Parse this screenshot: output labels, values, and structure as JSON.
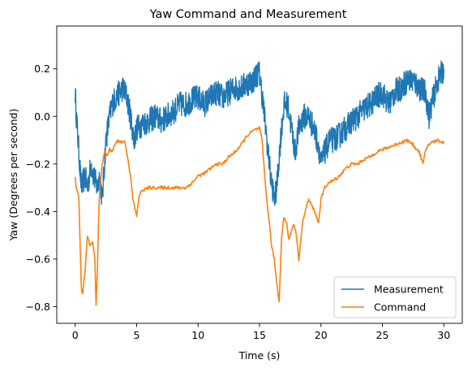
{
  "chart_data": {
    "type": "line",
    "title": "Yaw Command and Measurement",
    "xlabel": "Time (s)",
    "ylabel": "Yaw (Degrees per second)",
    "xlim": [
      -1.5,
      31.5
    ],
    "ylim": [
      -0.87,
      0.38
    ],
    "xticks": [
      0,
      5,
      10,
      15,
      20,
      25,
      30
    ],
    "yticks": [
      -0.8,
      -0.6,
      -0.4,
      -0.2,
      0.0,
      0.2
    ],
    "ytick_labels": [
      "−0.8",
      "−0.6",
      "−0.4",
      "−0.2",
      "0.0",
      "0.2"
    ],
    "grid": false,
    "legend_position": "lower-right",
    "series": [
      {
        "name": "Measurement",
        "color": "#1f77b4",
        "noise": 0.055,
        "x": [
          0,
          0.1,
          0.3,
          0.5,
          0.8,
          1.0,
          1.3,
          1.5,
          1.8,
          2.0,
          2.2,
          2.5,
          2.8,
          3.0,
          3.3,
          3.6,
          3.9,
          4.2,
          4.5,
          4.8,
          5.0,
          5.5,
          6.0,
          6.5,
          7.0,
          7.5,
          8.0,
          8.5,
          9.0,
          9.5,
          10.0,
          10.5,
          11.0,
          11.5,
          12.0,
          12.5,
          13.0,
          13.5,
          14.0,
          14.5,
          14.8,
          15.0,
          15.3,
          15.6,
          15.9,
          16.2,
          16.4,
          16.7,
          17.0,
          17.3,
          17.6,
          17.9,
          18.2,
          18.6,
          19.0,
          19.4,
          19.8,
          20.0,
          20.3,
          20.7,
          21.0,
          21.5,
          22.0,
          22.5,
          23.0,
          23.5,
          24.0,
          24.5,
          25.0,
          25.5,
          26.0,
          26.5,
          27.0,
          27.5,
          28.0,
          28.5,
          28.8,
          29.0,
          29.5,
          30.0
        ],
        "y": [
          0.1,
          0.0,
          -0.15,
          -0.3,
          -0.25,
          -0.3,
          -0.2,
          -0.25,
          -0.3,
          -0.25,
          -0.35,
          -0.1,
          0.0,
          0.05,
          0.08,
          0.1,
          0.12,
          0.08,
          0.0,
          -0.1,
          -0.05,
          -0.03,
          -0.02,
          0.0,
          -0.02,
          0.0,
          0.02,
          0.05,
          0.05,
          0.07,
          0.08,
          0.05,
          0.08,
          0.1,
          0.08,
          0.1,
          0.12,
          0.12,
          0.14,
          0.15,
          0.18,
          0.18,
          0.05,
          -0.1,
          -0.25,
          -0.35,
          -0.3,
          -0.1,
          0.05,
          0.05,
          -0.05,
          -0.15,
          -0.05,
          0.0,
          0.0,
          -0.05,
          -0.12,
          -0.2,
          -0.15,
          -0.1,
          -0.1,
          -0.08,
          -0.05,
          -0.02,
          0.0,
          0.03,
          0.05,
          0.08,
          0.1,
          0.05,
          0.1,
          0.12,
          0.15,
          0.15,
          0.12,
          0.1,
          0.0,
          0.05,
          0.15,
          0.2
        ]
      },
      {
        "name": "Command",
        "color": "#ff7f0e",
        "noise": 0.007,
        "x": [
          0,
          0.1,
          0.3,
          0.5,
          0.6,
          0.8,
          1.0,
          1.2,
          1.4,
          1.6,
          1.7,
          1.8,
          1.9,
          2.0,
          2.2,
          2.4,
          2.6,
          2.8,
          3.0,
          3.2,
          3.5,
          3.8,
          4.0,
          4.2,
          4.5,
          4.7,
          5.0,
          5.2,
          5.5,
          6.0,
          7.0,
          8.0,
          9.0,
          9.5,
          10.0,
          10.5,
          11.0,
          11.5,
          12.0,
          12.5,
          13.0,
          13.5,
          14.0,
          14.5,
          15.0,
          15.2,
          15.5,
          15.8,
          16.0,
          16.2,
          16.4,
          16.6,
          16.8,
          17.0,
          17.2,
          17.4,
          17.6,
          17.8,
          18.0,
          18.2,
          18.5,
          18.8,
          19.0,
          19.3,
          19.5,
          19.8,
          20.0,
          20.3,
          20.6,
          21.0,
          21.5,
          22.0,
          22.5,
          23.0,
          23.5,
          24.0,
          24.5,
          25.0,
          25.5,
          26.0,
          26.5,
          27.0,
          27.5,
          28.0,
          28.3,
          28.5,
          28.7,
          29.0,
          29.5,
          30.0
        ],
        "y": [
          -0.26,
          -0.3,
          -0.35,
          -0.72,
          -0.75,
          -0.65,
          -0.5,
          -0.55,
          -0.52,
          -0.6,
          -0.8,
          -0.65,
          -0.45,
          -0.3,
          -0.2,
          -0.15,
          -0.16,
          -0.14,
          -0.15,
          -0.12,
          -0.1,
          -0.11,
          -0.1,
          -0.15,
          -0.25,
          -0.35,
          -0.42,
          -0.33,
          -0.31,
          -0.3,
          -0.3,
          -0.3,
          -0.3,
          -0.28,
          -0.25,
          -0.24,
          -0.22,
          -0.2,
          -0.2,
          -0.17,
          -0.15,
          -0.12,
          -0.08,
          -0.06,
          -0.05,
          -0.1,
          -0.3,
          -0.45,
          -0.55,
          -0.6,
          -0.7,
          -0.78,
          -0.5,
          -0.42,
          -0.45,
          -0.52,
          -0.48,
          -0.45,
          -0.5,
          -0.6,
          -0.45,
          -0.38,
          -0.35,
          -0.38,
          -0.4,
          -0.45,
          -0.35,
          -0.3,
          -0.28,
          -0.27,
          -0.25,
          -0.22,
          -0.2,
          -0.2,
          -0.18,
          -0.17,
          -0.15,
          -0.14,
          -0.13,
          -0.12,
          -0.11,
          -0.1,
          -0.12,
          -0.15,
          -0.2,
          -0.15,
          -0.12,
          -0.11,
          -0.1,
          -0.11
        ]
      }
    ]
  }
}
